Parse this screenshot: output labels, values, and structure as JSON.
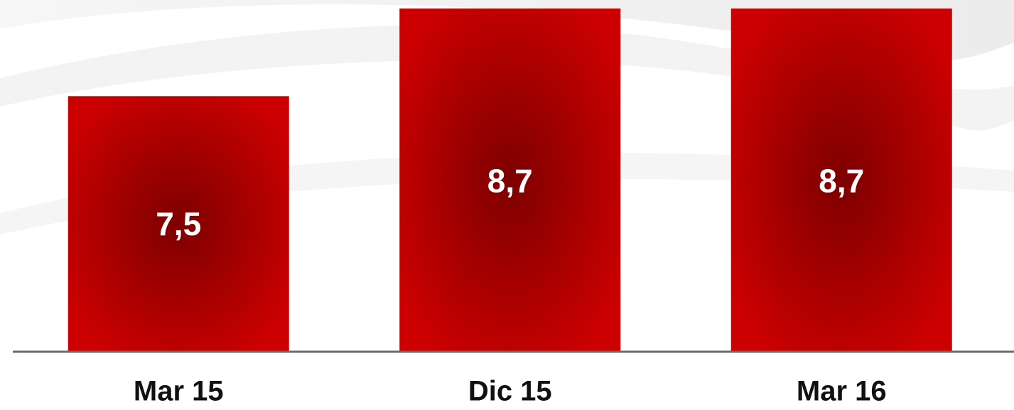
{
  "chart_data": {
    "type": "bar",
    "categories": [
      "Mar 15",
      "Dic 15",
      "Mar 16"
    ],
    "values": [
      7.5,
      8.7,
      8.7
    ],
    "value_labels": [
      "7,5",
      "8,7",
      "8,7"
    ],
    "color": "#c00000",
    "ylim": [
      4,
      8.7
    ]
  }
}
